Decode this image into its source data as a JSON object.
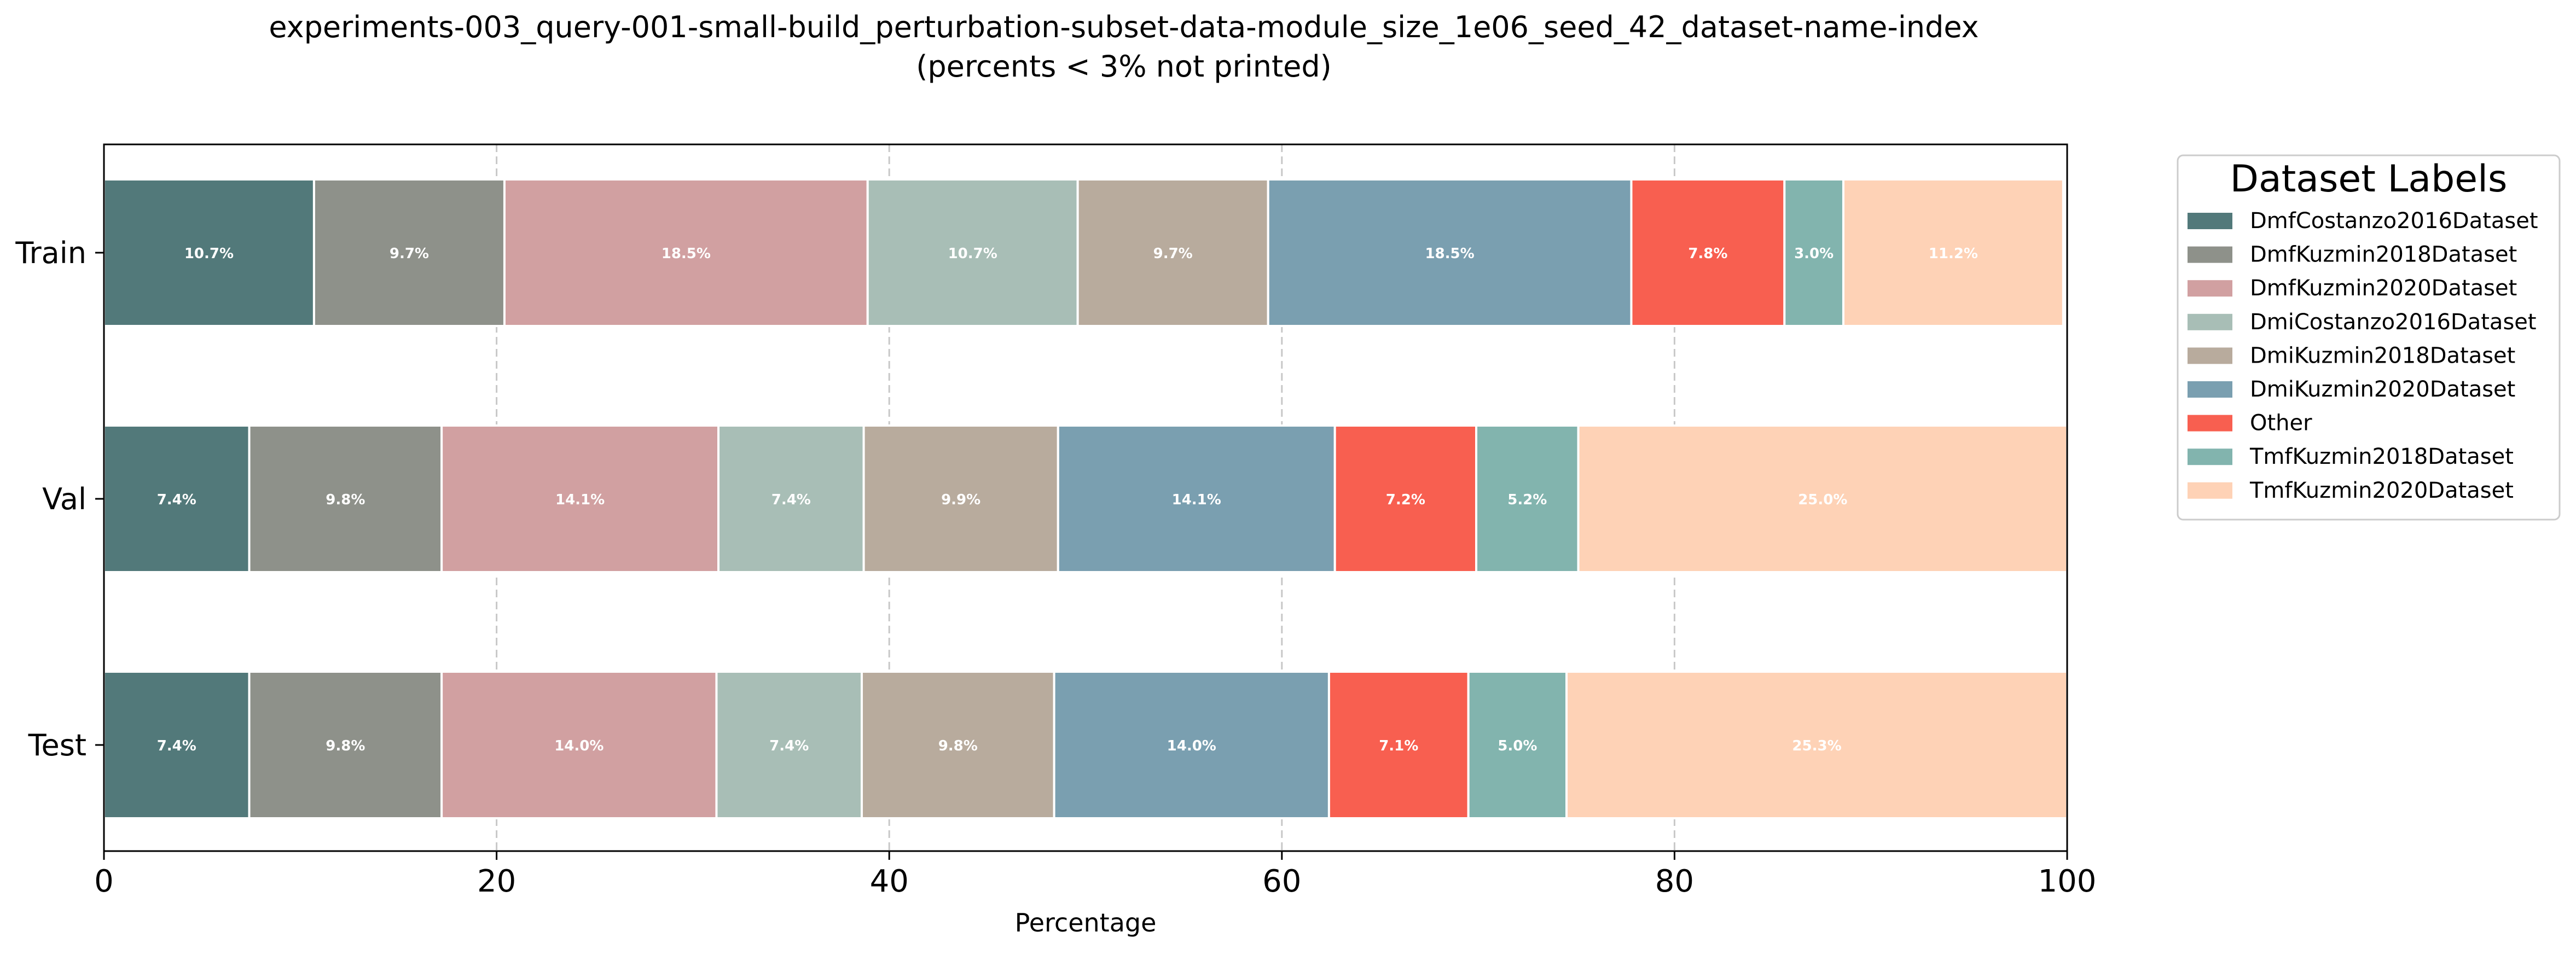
{
  "chart_data": {
    "type": "bar",
    "orientation": "horizontal",
    "stacked": true,
    "title": "experiments-003_query-001-small-build_perturbation-subset-data-module_size_1e06_seed_42_dataset-name-index",
    "subtitle": "(percents < 3% not printed)",
    "xlabel": "Percentage",
    "ylabel": "",
    "xlim": [
      0,
      100
    ],
    "xticks": [
      0,
      20,
      40,
      60,
      80,
      100
    ],
    "grid": "x-dashed",
    "legend_title": "Dataset Labels",
    "legend_position": "outside-top-right",
    "categories": [
      "Train",
      "Val",
      "Test"
    ],
    "series": [
      {
        "name": "DmfCostanzo2016Dataset",
        "color": "#52797a",
        "values": [
          10.7,
          7.4,
          7.4
        ],
        "labels": [
          "10.7%",
          "7.4%",
          "7.4%"
        ]
      },
      {
        "name": "DmfKuzmin2018Dataset",
        "color": "#8e918a",
        "values": [
          9.7,
          9.8,
          9.8
        ],
        "labels": [
          "9.7%",
          "9.8%",
          "9.8%"
        ]
      },
      {
        "name": "DmfKuzmin2020Dataset",
        "color": "#d1a0a1",
        "values": [
          18.5,
          14.1,
          14.0
        ],
        "labels": [
          "18.5%",
          "14.1%",
          "14.0%"
        ]
      },
      {
        "name": "DmiCostanzo2016Dataset",
        "color": "#a8beb6",
        "values": [
          10.7,
          7.4,
          7.4
        ],
        "labels": [
          "10.7%",
          "7.4%",
          "7.4%"
        ]
      },
      {
        "name": "DmiKuzmin2018Dataset",
        "color": "#b8ab9d",
        "values": [
          9.7,
          9.9,
          9.8
        ],
        "labels": [
          "9.7%",
          "9.9%",
          "9.8%"
        ]
      },
      {
        "name": "DmiKuzmin2020Dataset",
        "color": "#7a9fb0",
        "values": [
          18.5,
          14.1,
          14.0
        ],
        "labels": [
          "18.5%",
          "14.1%",
          "14.0%"
        ]
      },
      {
        "name": "Other",
        "color": "#f85f50",
        "values": [
          7.8,
          7.2,
          7.1
        ],
        "labels": [
          "7.8%",
          "7.2%",
          "7.1%"
        ]
      },
      {
        "name": "TmfKuzmin2018Dataset",
        "color": "#82b4ae",
        "values": [
          3.0,
          5.2,
          5.0
        ],
        "labels": [
          "3.0%",
          "5.2%",
          "5.0%"
        ]
      },
      {
        "name": "TmfKuzmin2020Dataset",
        "color": "#fed2b6",
        "values": [
          11.2,
          25.0,
          25.3
        ],
        "labels": [
          "11.2%",
          "25.0%",
          "25.3%"
        ]
      }
    ]
  }
}
